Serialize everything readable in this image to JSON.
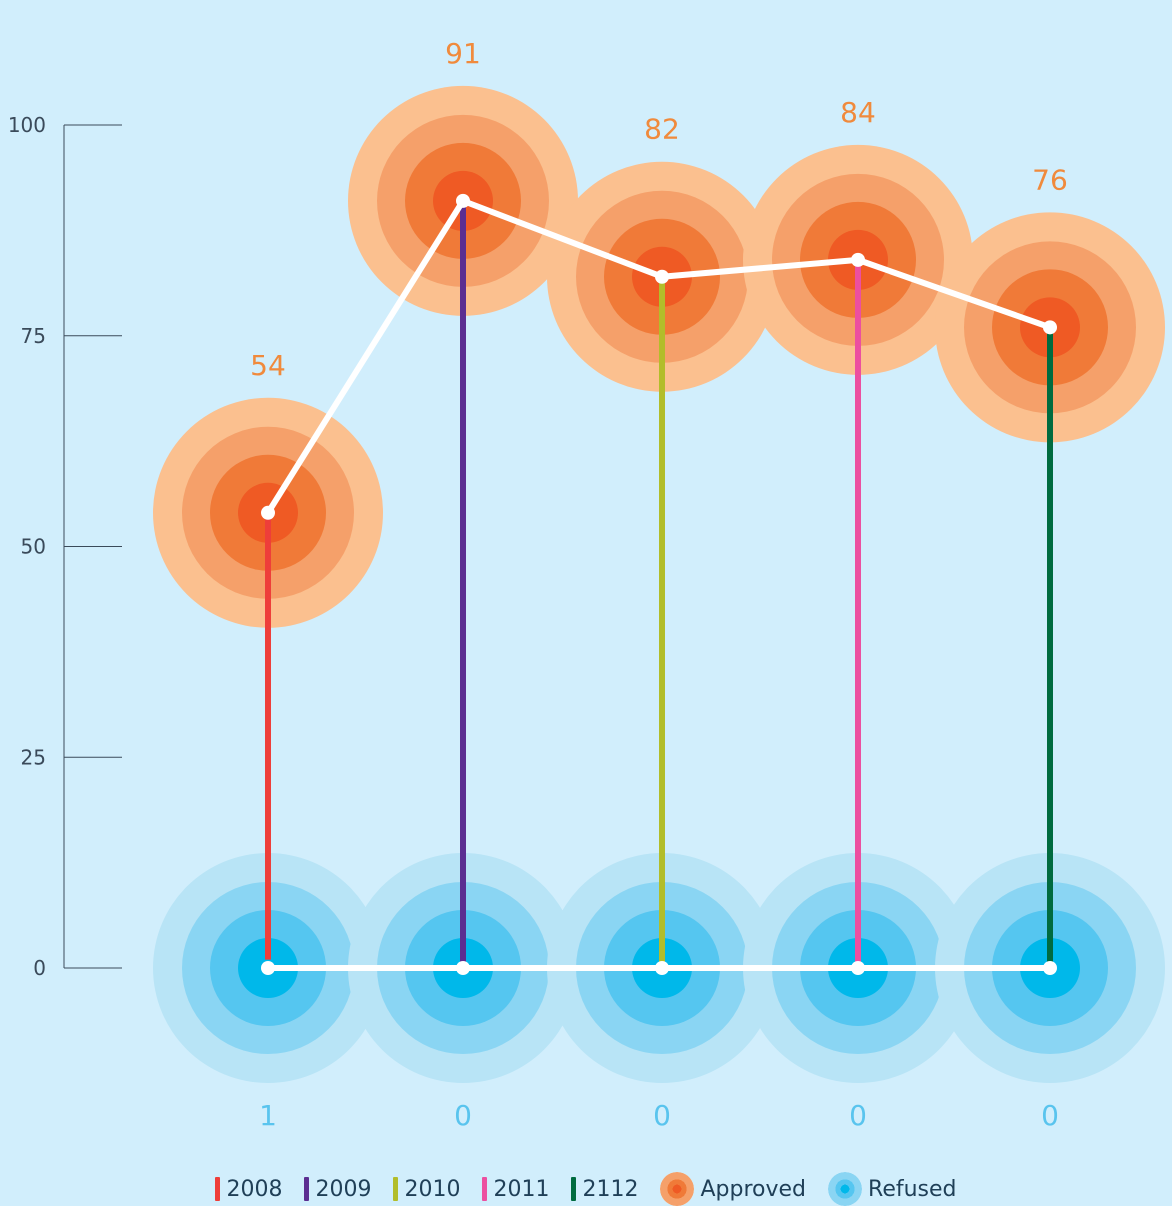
{
  "chart_data": {
    "type": "line",
    "categories": [
      "2008",
      "2009",
      "2010",
      "2011",
      "2112"
    ],
    "category_colors": [
      "#ee3e3a",
      "#5b2e91",
      "#b2bd2a",
      "#ec4fa0",
      "#006b3f"
    ],
    "series": [
      {
        "name": "Approved",
        "values": [
          54,
          91,
          82,
          84,
          76
        ],
        "labels": [
          "54",
          "91",
          "82",
          "84",
          "76"
        ],
        "color": "#f07a38"
      },
      {
        "name": "Refused",
        "values": [
          1,
          0,
          0,
          0,
          0
        ],
        "labels": [
          "1",
          "0",
          "0",
          "0",
          "0"
        ],
        "color": "#00b8ea"
      }
    ],
    "ylim": [
      0,
      100
    ],
    "yticks": [
      0,
      25,
      50,
      75,
      100
    ],
    "ytick_labels": [
      "0",
      "25",
      "50",
      "75",
      "100"
    ],
    "grid": false,
    "legend_position": "bottom",
    "xlabel": "",
    "ylabel": "",
    "title": ""
  },
  "legend": {
    "items": [
      {
        "label": "2008",
        "color": "#ee3e3a",
        "kind": "bar"
      },
      {
        "label": "2009",
        "color": "#5b2e91",
        "kind": "bar"
      },
      {
        "label": "2010",
        "color": "#b2bd2a",
        "kind": "bar"
      },
      {
        "label": "2011",
        "color": "#ec4fa0",
        "kind": "bar"
      },
      {
        "label": "2112",
        "color": "#006b3f",
        "kind": "bar"
      },
      {
        "label": "Approved",
        "kind": "approved-circle"
      },
      {
        "label": "Refused",
        "kind": "refused-circle"
      }
    ]
  },
  "colors": {
    "background": "#d1eefc",
    "connector_line": "#ffffff",
    "axis": "#3a4a5a",
    "approved_rings": [
      "#fbc08f",
      "#f5a06a",
      "#f07a38",
      "#ef5a24"
    ],
    "refused_rings": [
      "#b8e4f6",
      "#8ad5f3",
      "#55c6f0",
      "#00b8ea"
    ]
  }
}
